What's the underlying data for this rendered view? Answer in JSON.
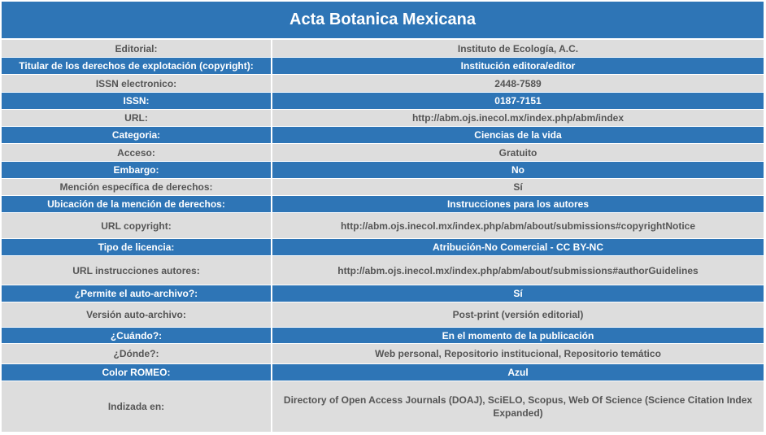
{
  "title": "Acta Botanica Mexicana",
  "rows": [
    {
      "label": "Editorial:",
      "value": "Instituto de Ecología, A.C."
    },
    {
      "label": "Titular de los derechos de explotación (copyright):",
      "value": "Institución editora/editor"
    },
    {
      "label": "ISSN electronico:",
      "value": "2448-7589"
    },
    {
      "label": "ISSN:",
      "value": "0187-7151"
    },
    {
      "label": "URL:",
      "value": "http://abm.ojs.inecol.mx/index.php/abm/index"
    },
    {
      "label": "Categoria:",
      "value": "Ciencias de la vida"
    },
    {
      "label": "Acceso:",
      "value": "Gratuito"
    },
    {
      "label": "Embargo:",
      "value": "No"
    },
    {
      "label": "Mención específica de derechos:",
      "value": "Sí"
    },
    {
      "label": "Ubicación de la mención de derechos:",
      "value": "Instrucciones para los autores"
    },
    {
      "label": "URL copyright:",
      "value": "http://abm.ojs.inecol.mx/index.php/abm/about/submissions#copyrightNotice"
    },
    {
      "label": "Tipo de licencia:",
      "value": "Atribución-No Comercial - CC BY-NC"
    },
    {
      "label": "URL instrucciones autores:",
      "value": "http://abm.ojs.inecol.mx/index.php/abm/about/submissions#authorGuidelines"
    },
    {
      "label": "¿Permite el auto-archivo?:",
      "value": "Sí"
    },
    {
      "label": "Versión auto-archivo:",
      "value": "Post-print (versión editorial)"
    },
    {
      "label": "¿Cuándo?:",
      "value": "En el momento de la publicación"
    },
    {
      "label": "¿Dónde?:",
      "value": "Web personal, Repositorio institucional, Repositorio temático"
    },
    {
      "label": "Color ROMEO:",
      "value": "Azul"
    },
    {
      "label": "Indizada en:",
      "value": "Directory of Open Access Journals (DOAJ), SciELO, Scopus, Web Of Science (Science Citation Index Expanded)"
    }
  ]
}
